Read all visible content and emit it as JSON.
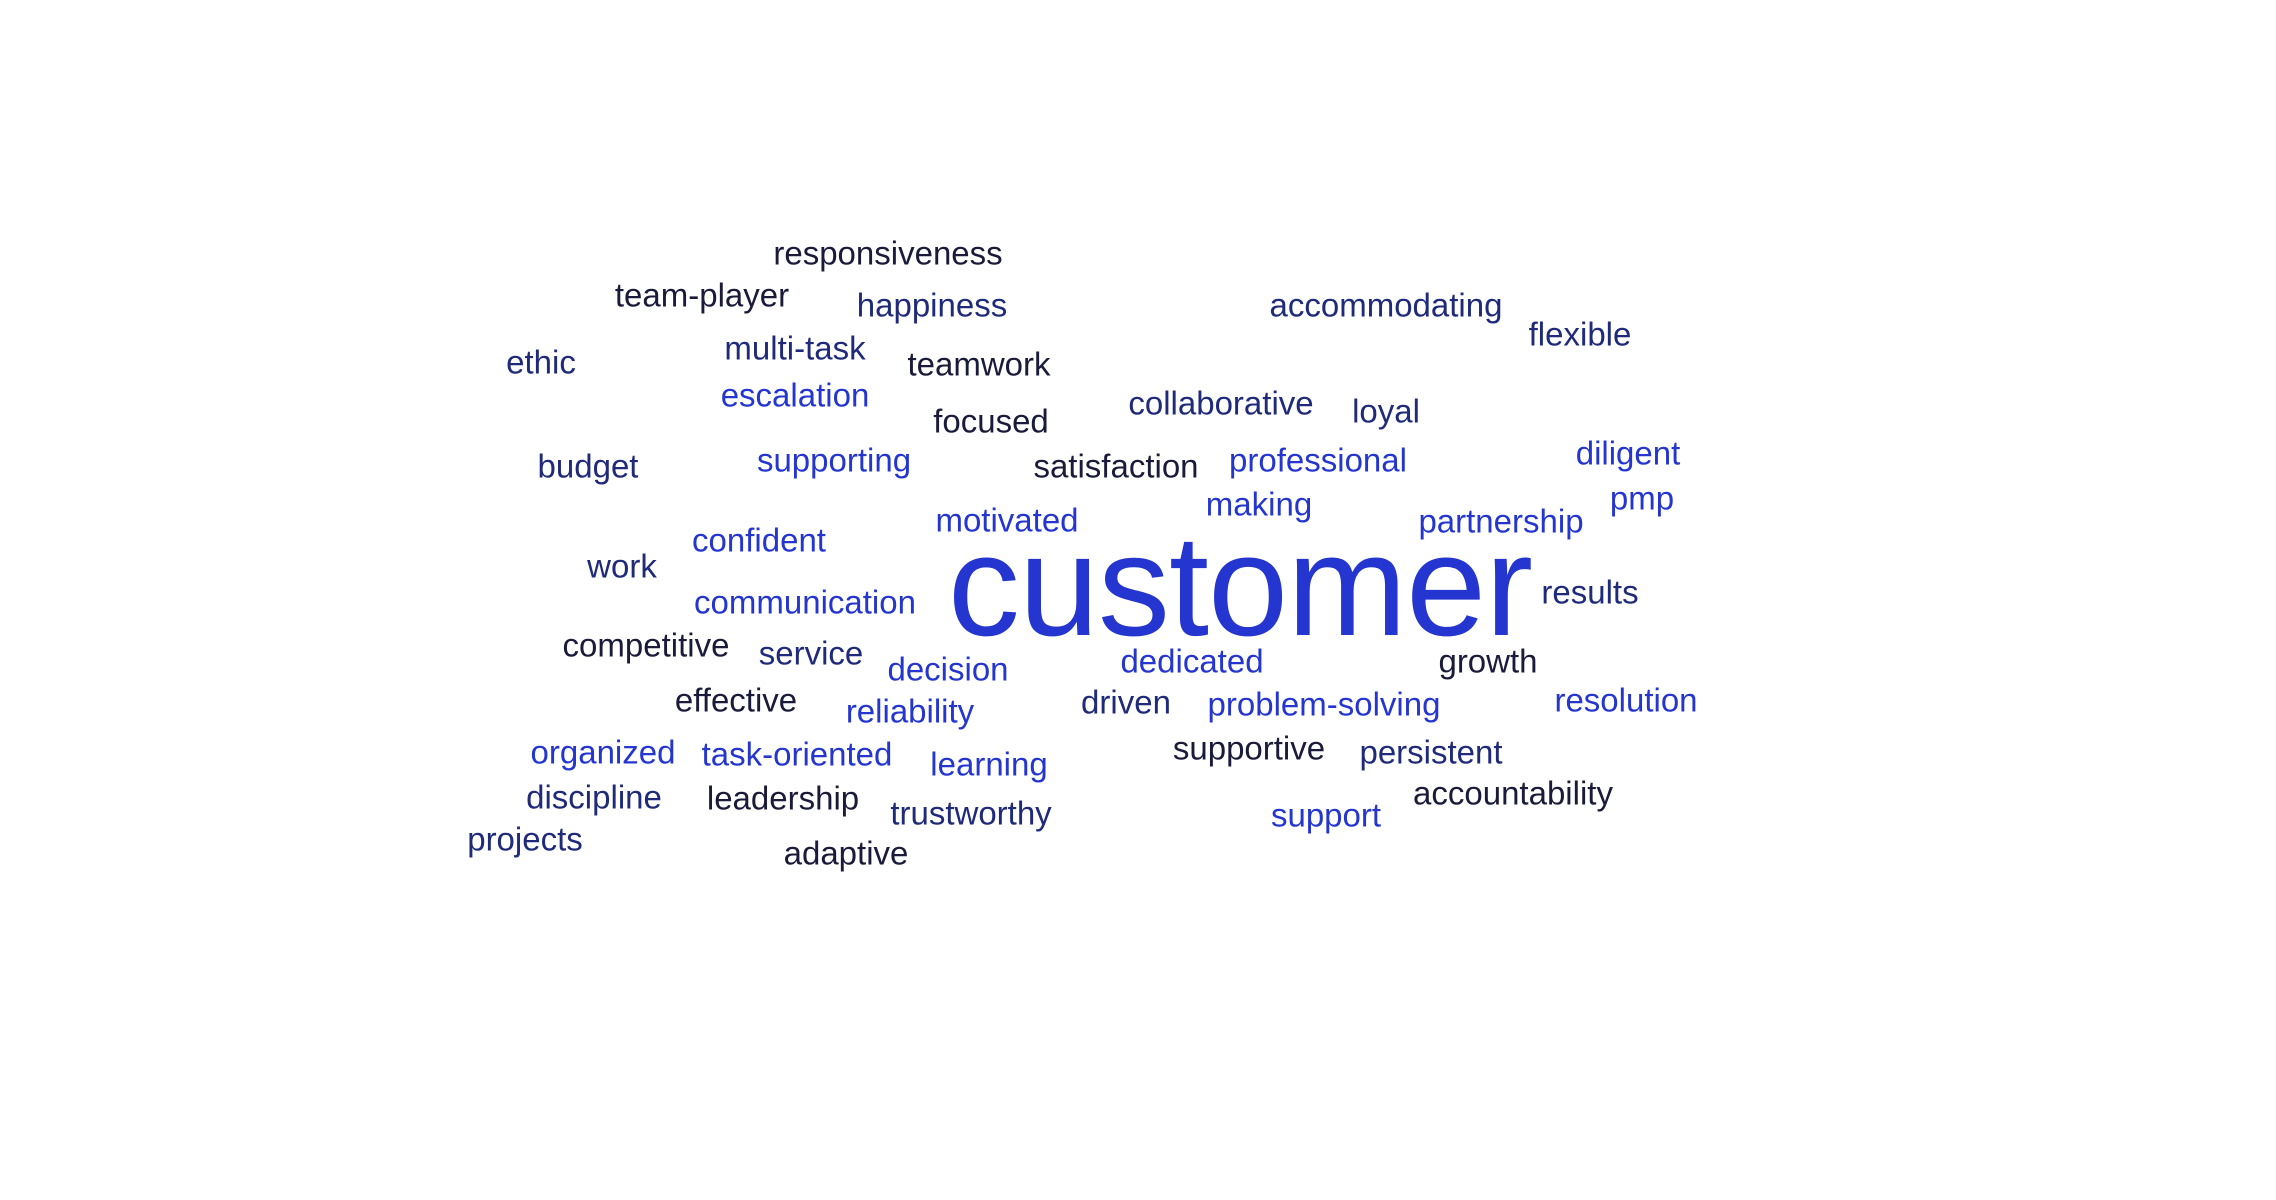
{
  "word_cloud": {
    "colors": {
      "dark": "#1a1a3a",
      "navy": "#1f2a7a",
      "blue": "#2436cf"
    },
    "words": [
      {
        "text": "customer",
        "tone": "blue",
        "weight": 1.0
      },
      {
        "text": "responsiveness",
        "tone": "dark",
        "weight": 0.23
      },
      {
        "text": "team-player",
        "tone": "dark",
        "weight": 0.23
      },
      {
        "text": "happiness",
        "tone": "navy",
        "weight": 0.23
      },
      {
        "text": "accommodating",
        "tone": "navy",
        "weight": 0.23
      },
      {
        "text": "flexible",
        "tone": "navy",
        "weight": 0.23
      },
      {
        "text": "ethic",
        "tone": "navy",
        "weight": 0.23
      },
      {
        "text": "multi-task",
        "tone": "navy",
        "weight": 0.23
      },
      {
        "text": "teamwork",
        "tone": "dark",
        "weight": 0.23
      },
      {
        "text": "escalation",
        "tone": "blue",
        "weight": 0.23
      },
      {
        "text": "collaborative",
        "tone": "navy",
        "weight": 0.23
      },
      {
        "text": "loyal",
        "tone": "navy",
        "weight": 0.23
      },
      {
        "text": "focused",
        "tone": "dark",
        "weight": 0.23
      },
      {
        "text": "budget",
        "tone": "navy",
        "weight": 0.23
      },
      {
        "text": "supporting",
        "tone": "blue",
        "weight": 0.23
      },
      {
        "text": "satisfaction",
        "tone": "dark",
        "weight": 0.23
      },
      {
        "text": "professional",
        "tone": "blue",
        "weight": 0.23
      },
      {
        "text": "diligent",
        "tone": "blue",
        "weight": 0.23
      },
      {
        "text": "pmp",
        "tone": "blue",
        "weight": 0.23
      },
      {
        "text": "making",
        "tone": "blue",
        "weight": 0.23
      },
      {
        "text": "motivated",
        "tone": "blue",
        "weight": 0.23
      },
      {
        "text": "partnership",
        "tone": "blue",
        "weight": 0.23
      },
      {
        "text": "confident",
        "tone": "blue",
        "weight": 0.23
      },
      {
        "text": "work",
        "tone": "navy",
        "weight": 0.23
      },
      {
        "text": "communication",
        "tone": "blue",
        "weight": 0.23
      },
      {
        "text": "results",
        "tone": "navy",
        "weight": 0.23
      },
      {
        "text": "competitive",
        "tone": "dark",
        "weight": 0.23
      },
      {
        "text": "service",
        "tone": "navy",
        "weight": 0.23
      },
      {
        "text": "decision",
        "tone": "blue",
        "weight": 0.23
      },
      {
        "text": "dedicated",
        "tone": "blue",
        "weight": 0.23
      },
      {
        "text": "growth",
        "tone": "dark",
        "weight": 0.23
      },
      {
        "text": "effective",
        "tone": "dark",
        "weight": 0.23
      },
      {
        "text": "reliability",
        "tone": "blue",
        "weight": 0.23
      },
      {
        "text": "driven",
        "tone": "navy",
        "weight": 0.23
      },
      {
        "text": "problem-solving",
        "tone": "blue",
        "weight": 0.23
      },
      {
        "text": "resolution",
        "tone": "blue",
        "weight": 0.23
      },
      {
        "text": "organized",
        "tone": "blue",
        "weight": 0.23
      },
      {
        "text": "task-oriented",
        "tone": "blue",
        "weight": 0.23
      },
      {
        "text": "learning",
        "tone": "blue",
        "weight": 0.23
      },
      {
        "text": "supportive",
        "tone": "dark",
        "weight": 0.23
      },
      {
        "text": "persistent",
        "tone": "navy",
        "weight": 0.23
      },
      {
        "text": "discipline",
        "tone": "navy",
        "weight": 0.23
      },
      {
        "text": "leadership",
        "tone": "dark",
        "weight": 0.23
      },
      {
        "text": "trustworthy",
        "tone": "navy",
        "weight": 0.23
      },
      {
        "text": "accountability",
        "tone": "dark",
        "weight": 0.23
      },
      {
        "text": "support",
        "tone": "blue",
        "weight": 0.23
      },
      {
        "text": "projects",
        "tone": "navy",
        "weight": 0.23
      },
      {
        "text": "adaptive",
        "tone": "dark",
        "weight": 0.23
      }
    ]
  }
}
